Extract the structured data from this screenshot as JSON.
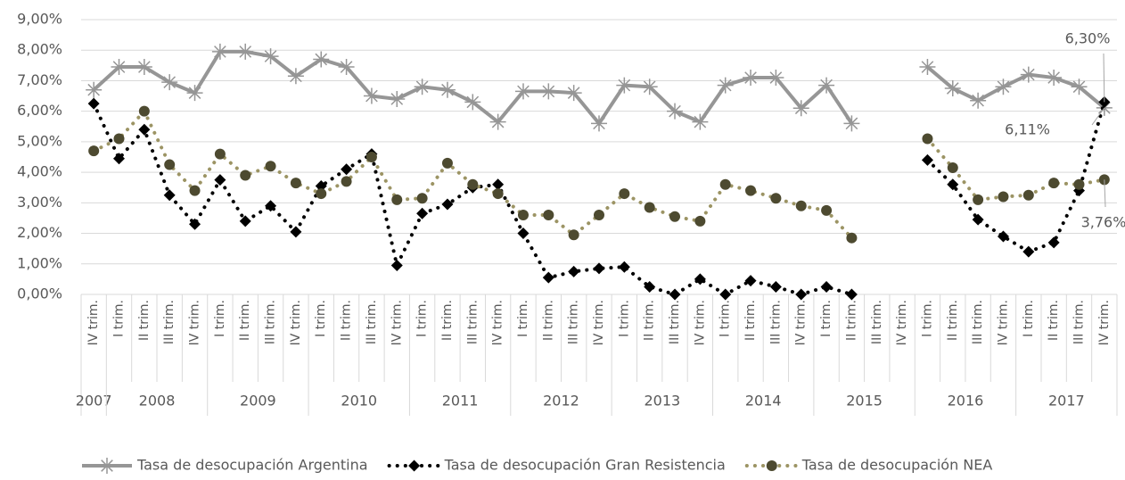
{
  "chart_data": {
    "type": "line",
    "groups": [
      {
        "name": "2007",
        "categories": [
          "IV trim."
        ]
      },
      {
        "name": "2008",
        "categories": [
          "I trim.",
          "II trim.",
          "III trim.",
          "IV trim."
        ]
      },
      {
        "name": "2009",
        "categories": [
          "I trim.",
          "II trim.",
          "III trim.",
          "IV trim."
        ]
      },
      {
        "name": "2010",
        "categories": [
          "I trim.",
          "II trim.",
          "III trim.",
          "IV trim."
        ]
      },
      {
        "name": "2011",
        "categories": [
          "I trim.",
          "II trim.",
          "III trim.",
          "IV trim."
        ]
      },
      {
        "name": "2012",
        "categories": [
          "I trim.",
          "II trim.",
          "III trim.",
          "IV trim."
        ]
      },
      {
        "name": "2013",
        "categories": [
          "I trim.",
          "II trim.",
          "III trim.",
          "IV trim."
        ]
      },
      {
        "name": "2014",
        "categories": [
          "I trim.",
          "II trim.",
          "III trim.",
          "IV trim."
        ]
      },
      {
        "name": "2015",
        "categories": [
          "I trim.",
          "II trim.",
          "III trim.",
          "IV trim."
        ]
      },
      {
        "name": "2016",
        "categories": [
          "I trim.",
          "II trim.",
          "III trim.",
          "IV trim."
        ]
      },
      {
        "name": "2017",
        "categories": [
          "I trim.",
          "II trim.",
          "III trim.",
          "IV trim."
        ]
      }
    ],
    "series": [
      {
        "name": "Tasa de desocupación Argentina",
        "color": "#969696",
        "marker": "star",
        "dash": "solid",
        "values": [
          6.7,
          7.45,
          7.45,
          6.95,
          6.6,
          7.95,
          7.95,
          7.8,
          7.15,
          7.7,
          7.45,
          6.5,
          6.4,
          6.8,
          6.7,
          6.3,
          5.65,
          6.65,
          6.65,
          6.6,
          5.6,
          6.85,
          6.8,
          6.0,
          5.65,
          6.85,
          7.1,
          7.1,
          6.1,
          6.85,
          5.6,
          null,
          null,
          7.45,
          6.75,
          6.35,
          6.8,
          7.2,
          7.1,
          6.8,
          6.11
        ],
        "value_labels": [
          null,
          null,
          null,
          null,
          null,
          null,
          null,
          null,
          null,
          null,
          null,
          null,
          null,
          null,
          null,
          null,
          null,
          null,
          null,
          null,
          null,
          null,
          null,
          null,
          null,
          null,
          null,
          null,
          null,
          null,
          null,
          null,
          null,
          null,
          null,
          null,
          null,
          null,
          null,
          null,
          "6,11%"
        ]
      },
      {
        "name": "Tasa de desocupación Gran Resistencia",
        "color": "#000000",
        "marker": "diamond",
        "dash": "dot",
        "values": [
          6.25,
          4.45,
          5.4,
          3.25,
          2.3,
          3.75,
          2.4,
          2.9,
          2.05,
          3.55,
          4.1,
          4.6,
          0.95,
          2.65,
          2.95,
          3.5,
          3.6,
          2.0,
          0.55,
          0.75,
          0.85,
          0.9,
          0.25,
          0.0,
          0.5,
          0.0,
          0.45,
          0.25,
          0.0,
          0.25,
          0.0,
          null,
          null,
          4.4,
          3.6,
          2.45,
          1.9,
          1.4,
          1.7,
          3.4,
          6.3
        ],
        "value_labels": [
          null,
          null,
          null,
          null,
          null,
          null,
          null,
          null,
          null,
          null,
          null,
          null,
          null,
          null,
          null,
          null,
          null,
          null,
          null,
          null,
          null,
          null,
          null,
          null,
          null,
          null,
          null,
          null,
          null,
          null,
          null,
          null,
          null,
          null,
          null,
          null,
          null,
          null,
          null,
          null,
          "6,30%"
        ]
      },
      {
        "name": "Tasa de desocupación NEA",
        "color": "#9c9464",
        "marker": "circle",
        "marker_color": "#4d4a30",
        "dash": "dot",
        "values": [
          4.7,
          5.1,
          6.0,
          4.25,
          3.4,
          4.6,
          3.9,
          4.2,
          3.65,
          3.3,
          3.7,
          4.5,
          3.1,
          3.15,
          4.3,
          3.6,
          3.3,
          2.6,
          2.6,
          1.95,
          2.6,
          3.3,
          2.85,
          2.55,
          2.4,
          3.6,
          3.4,
          3.15,
          2.9,
          2.75,
          1.85,
          null,
          null,
          5.1,
          4.15,
          3.1,
          3.2,
          3.25,
          3.65,
          3.6,
          3.76
        ],
        "value_labels": [
          null,
          null,
          null,
          null,
          null,
          null,
          null,
          null,
          null,
          null,
          null,
          null,
          null,
          null,
          null,
          null,
          null,
          null,
          null,
          null,
          null,
          null,
          null,
          null,
          null,
          null,
          null,
          null,
          null,
          null,
          null,
          null,
          null,
          null,
          null,
          null,
          null,
          null,
          null,
          null,
          "3,76%"
        ]
      }
    ],
    "ylim": [
      0,
      9
    ],
    "yticks": [
      {
        "value": 0,
        "label": "0,00%"
      },
      {
        "value": 1,
        "label": "1,00%"
      },
      {
        "value": 2,
        "label": "2,00%"
      },
      {
        "value": 3,
        "label": "3,00%"
      },
      {
        "value": 4,
        "label": "4,00%"
      },
      {
        "value": 5,
        "label": "5,00%"
      },
      {
        "value": 6,
        "label": "6,00%"
      },
      {
        "value": 7,
        "label": "7,00%"
      },
      {
        "value": 8,
        "label": "8,00%"
      },
      {
        "value": 9,
        "label": "9,00%"
      }
    ],
    "grid": true,
    "legend": "bottom"
  }
}
